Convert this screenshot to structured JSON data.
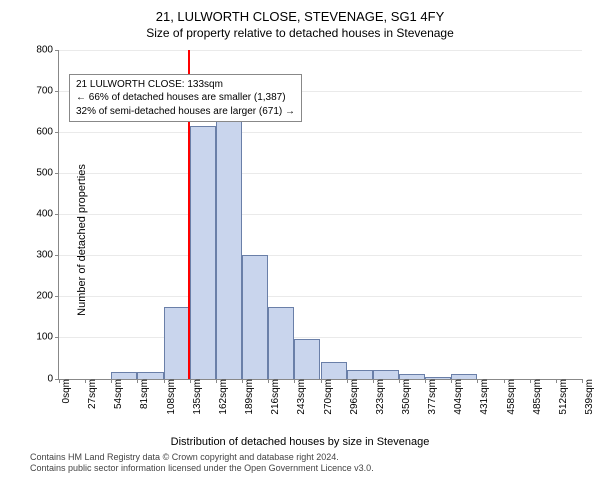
{
  "header": {
    "address": "21, LULWORTH CLOSE, STEVENAGE, SG1 4FY",
    "subtitle": "Size of property relative to detached houses in Stevenage"
  },
  "chart": {
    "type": "histogram",
    "ylabel": "Number of detached properties",
    "xlabel": "Distribution of detached houses by size in Stevenage",
    "ylim": [
      0,
      800
    ],
    "ytick_step": 100,
    "xtick_labels": [
      "0sqm",
      "27sqm",
      "54sqm",
      "81sqm",
      "108sqm",
      "135sqm",
      "162sqm",
      "189sqm",
      "216sqm",
      "243sqm",
      "270sqm",
      "296sqm",
      "323sqm",
      "350sqm",
      "377sqm",
      "404sqm",
      "431sqm",
      "458sqm",
      "485sqm",
      "512sqm",
      "539sqm"
    ],
    "bars": [
      0,
      0,
      15,
      15,
      175,
      615,
      655,
      300,
      175,
      95,
      40,
      20,
      20,
      10,
      5,
      10,
      0,
      0,
      0,
      0
    ],
    "bar_fill": "#c9d5ed",
    "bar_stroke": "#6a7fa8",
    "background_color": "#ffffff",
    "grid_color": "#888888",
    "reference_line": {
      "at_sqm": 133,
      "max_sqm": 539,
      "color": "#ff0000"
    },
    "annotation": {
      "line1": "21 LULWORTH CLOSE: 133sqm",
      "line2": "← 66% of detached houses are smaller (1,387)",
      "line3": "32% of semi-detached houses are larger (671) →",
      "border_color": "#888888"
    },
    "label_fontsize": 11,
    "tick_fontsize": 10,
    "bar_border_width": 1
  },
  "footer": {
    "line1": "Contains HM Land Registry data © Crown copyright and database right 2024.",
    "line2": "Contains public sector information licensed under the Open Government Licence v3.0."
  }
}
